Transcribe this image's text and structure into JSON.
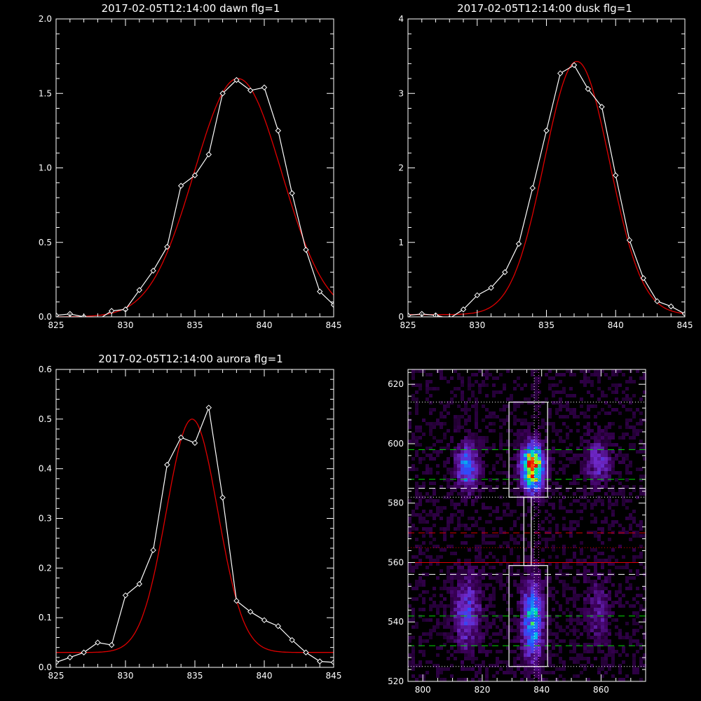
{
  "chart_data": [
    {
      "type": "line",
      "title": "2017-02-05T12:14:00 dawn flg=1",
      "xlim": [
        825,
        845
      ],
      "ylim": [
        0,
        2.0
      ],
      "xticks": [
        "825",
        "830",
        "835",
        "840",
        "845"
      ],
      "yticks": [
        "0.0",
        "0.5",
        "1.0",
        "1.5",
        "2.0"
      ],
      "series": [
        {
          "style": "data-diamonds",
          "color": "#ffffff",
          "x": [
            825,
            826,
            827,
            828,
            829,
            830,
            831,
            832,
            833,
            834,
            835,
            836,
            837,
            838,
            839,
            840,
            841,
            842,
            843,
            844,
            845
          ],
          "y": [
            0.01,
            0.02,
            0.0,
            -0.02,
            0.04,
            0.05,
            0.18,
            0.31,
            0.47,
            0.88,
            0.95,
            1.09,
            1.5,
            1.59,
            1.52,
            1.54,
            1.25,
            0.83,
            0.45,
            0.17,
            0.08
          ]
        },
        {
          "style": "fit",
          "color": "#e00000",
          "fit": {
            "amp": 1.6,
            "center": 838.1,
            "sigma": 3.15,
            "base": 0.0
          }
        }
      ]
    },
    {
      "type": "line",
      "title": "2017-02-05T12:14:00 dusk flg=1",
      "xlim": [
        825,
        845
      ],
      "ylim": [
        0,
        4
      ],
      "xticks": [
        "825",
        "830",
        "835",
        "840",
        "845"
      ],
      "yticks": [
        "0",
        "1",
        "2",
        "3",
        "4"
      ],
      "series": [
        {
          "style": "data-diamonds",
          "color": "#ffffff",
          "x": [
            825,
            826,
            827,
            828,
            829,
            830,
            831,
            832,
            833,
            834,
            835,
            836,
            837,
            838,
            839,
            840,
            841,
            842,
            843,
            844,
            845
          ],
          "y": [
            0.02,
            0.04,
            0.02,
            -0.02,
            0.1,
            0.29,
            0.39,
            0.6,
            0.98,
            1.73,
            2.5,
            3.27,
            3.38,
            3.06,
            2.82,
            1.9,
            1.03,
            0.52,
            0.21,
            0.14,
            0.04
          ]
        },
        {
          "style": "fit",
          "color": "#e00000",
          "fit": {
            "amp": 3.4,
            "center": 837.2,
            "sigma": 2.35,
            "base": 0.03
          }
        }
      ]
    },
    {
      "type": "line",
      "title": "2017-02-05T12:14:00 aurora flg=1",
      "xlim": [
        825,
        845
      ],
      "ylim": [
        0,
        0.6
      ],
      "xticks": [
        "825",
        "830",
        "835",
        "840",
        "845"
      ],
      "yticks": [
        "0.0",
        "0.1",
        "0.2",
        "0.3",
        "0.4",
        "0.5",
        "0.6"
      ],
      "series": [
        {
          "style": "data-diamonds",
          "color": "#ffffff",
          "x": [
            825,
            826,
            827,
            828,
            829,
            830,
            831,
            832,
            833,
            834,
            835,
            836,
            837,
            838,
            839,
            840,
            841,
            842,
            843,
            844,
            845
          ],
          "y": [
            0.01,
            0.02,
            0.03,
            0.05,
            0.045,
            0.145,
            0.168,
            0.236,
            0.408,
            0.463,
            0.452,
            0.523,
            0.342,
            0.134,
            0.112,
            0.095,
            0.083,
            0.055,
            0.03,
            0.012,
            0.01
          ]
        },
        {
          "style": "fit",
          "color": "#e00000",
          "fit": {
            "amp": 0.47,
            "center": 834.8,
            "sigma": 1.85,
            "base": 0.03
          }
        }
      ]
    },
    {
      "type": "heatmap",
      "title": "",
      "xlim": [
        795,
        875
      ],
      "ylim": [
        520,
        625
      ],
      "xticks": [
        "800",
        "820",
        "840",
        "860"
      ],
      "yticks": [
        "520",
        "540",
        "560",
        "580",
        "600",
        "620"
      ],
      "blobs": [
        {
          "x": 837,
          "y": 592,
          "amp": 1.0,
          "sx": 2.5,
          "sy": 5
        },
        {
          "x": 837,
          "y": 540,
          "amp": 0.5,
          "sx": 2.5,
          "sy": 9
        },
        {
          "x": 815,
          "y": 592,
          "amp": 0.42,
          "sx": 2.5,
          "sy": 5
        },
        {
          "x": 815,
          "y": 543,
          "amp": 0.3,
          "sx": 3,
          "sy": 8
        },
        {
          "x": 859,
          "y": 594,
          "amp": 0.25,
          "sx": 3,
          "sy": 5
        },
        {
          "x": 859,
          "y": 543,
          "amp": 0.15,
          "sx": 3,
          "sy": 8
        }
      ],
      "boxes": [
        {
          "x0": 829,
          "x1": 842,
          "y0": 582,
          "y1": 614,
          "color": "#ffffff"
        },
        {
          "x0": 829,
          "x1": 842,
          "y0": 525,
          "y1": 559,
          "color": "#ffffff"
        },
        {
          "x0": 834,
          "x1": 836.5,
          "y0": 559,
          "y1": 582,
          "color": "#ffffff"
        }
      ],
      "hlines": [
        {
          "y": 614,
          "color": "#ffffff",
          "style": "dotted"
        },
        {
          "y": 598,
          "color": "#00dd00",
          "style": "dashed"
        },
        {
          "y": 588,
          "color": "#00dd00",
          "style": "dashed"
        },
        {
          "y": 585,
          "color": "#ffffff",
          "style": "dashed"
        },
        {
          "y": 582,
          "color": "#ffffff",
          "style": "dotted"
        },
        {
          "y": 570,
          "color": "#e00000",
          "style": "dashed"
        },
        {
          "y": 565,
          "color": "#e00000",
          "style": "dotted"
        },
        {
          "y": 560,
          "color": "#e00000",
          "style": "solid"
        },
        {
          "y": 556,
          "color": "#ffffff",
          "style": "dashed"
        },
        {
          "y": 542,
          "color": "#00dd00",
          "style": "dashed"
        },
        {
          "y": 532,
          "color": "#00dd00",
          "style": "dashed"
        },
        {
          "y": 525,
          "color": "#ffffff",
          "style": "dotted"
        }
      ],
      "vlines": [
        {
          "x": 837.5,
          "color": "#ffffff",
          "style": "dotted"
        },
        {
          "x": 839,
          "color": "#ff55ff",
          "style": "dotted"
        }
      ]
    }
  ]
}
